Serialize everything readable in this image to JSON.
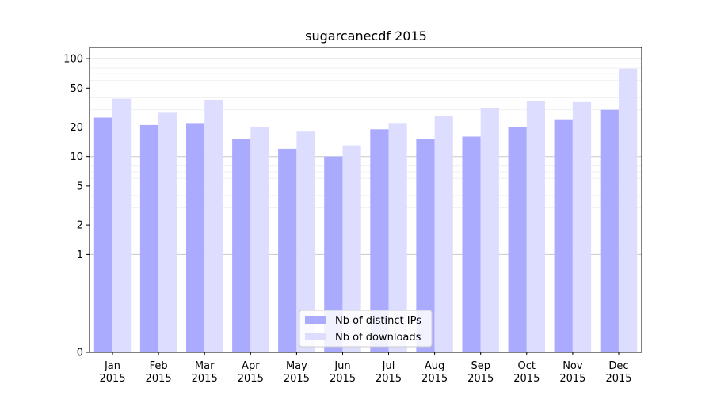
{
  "chart_data": {
    "type": "bar",
    "title": "sugarcanecdf 2015",
    "xlabel": "",
    "ylabel": "",
    "y_scale": "symlog",
    "y_ticks": [
      0,
      1,
      2,
      5,
      10,
      20,
      50,
      100
    ],
    "ylim": [
      0,
      130
    ],
    "grid": true,
    "legend_position": "lower center",
    "categories": [
      [
        "Jan",
        "2015"
      ],
      [
        "Feb",
        "2015"
      ],
      [
        "Mar",
        "2015"
      ],
      [
        "Apr",
        "2015"
      ],
      [
        "May",
        "2015"
      ],
      [
        "Jun",
        "2015"
      ],
      [
        "Jul",
        "2015"
      ],
      [
        "Aug",
        "2015"
      ],
      [
        "Sep",
        "2015"
      ],
      [
        "Oct",
        "2015"
      ],
      [
        "Nov",
        "2015"
      ],
      [
        "Dec",
        "2015"
      ]
    ],
    "series": [
      {
        "name": "Nb of distinct IPs",
        "color": "#aaaaff",
        "values": [
          25,
          21,
          22,
          15,
          12,
          10,
          19,
          15,
          16,
          20,
          24,
          30
        ]
      },
      {
        "name": "Nb of downloads",
        "color": "#ddddff",
        "values": [
          39,
          28,
          38,
          20,
          18,
          13,
          22,
          26,
          31,
          37,
          36,
          79
        ]
      }
    ]
  }
}
